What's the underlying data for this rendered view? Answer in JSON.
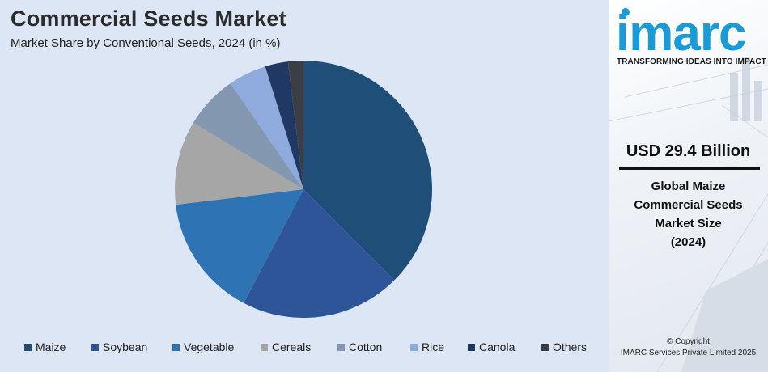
{
  "header": {
    "title": "Commercial Seeds Market",
    "subtitle": "Market Share by Conventional Seeds, 2024 (in %)"
  },
  "chart_data": {
    "type": "pie",
    "categories": [
      "Maize",
      "Soybean",
      "Vegetable",
      "Cereals",
      "Cotton",
      "Rice",
      "Canola",
      "Others"
    ],
    "values": [
      39,
      21,
      16,
      11,
      7,
      5,
      3,
      2
    ],
    "colors": [
      "#1f4e79",
      "#2e5597",
      "#2e74b5",
      "#a6a6a6",
      "#8497b0",
      "#8faadc",
      "#203864",
      "#3b3f45"
    ],
    "unit": "%",
    "title": "Commercial Seeds Market",
    "subtitle": "Market Share by Conventional Seeds, 2024 (in %)",
    "legend_position": "bottom",
    "start_angle_deg": 0,
    "direction": "clockwise"
  },
  "sidebar": {
    "logo_text": "imarc",
    "tagline": "TRANSFORMING IDEAS INTO IMPACT",
    "stat_value": "USD 29.4 Billion",
    "stat_caption_lines": [
      "Global Maize",
      "Commercial Seeds",
      "Market Size",
      "(2024)"
    ],
    "copyright_lines": [
      "© Copyright",
      "IMARC Services Private Limited 2025"
    ],
    "brand_color": "#1a9bd7"
  }
}
